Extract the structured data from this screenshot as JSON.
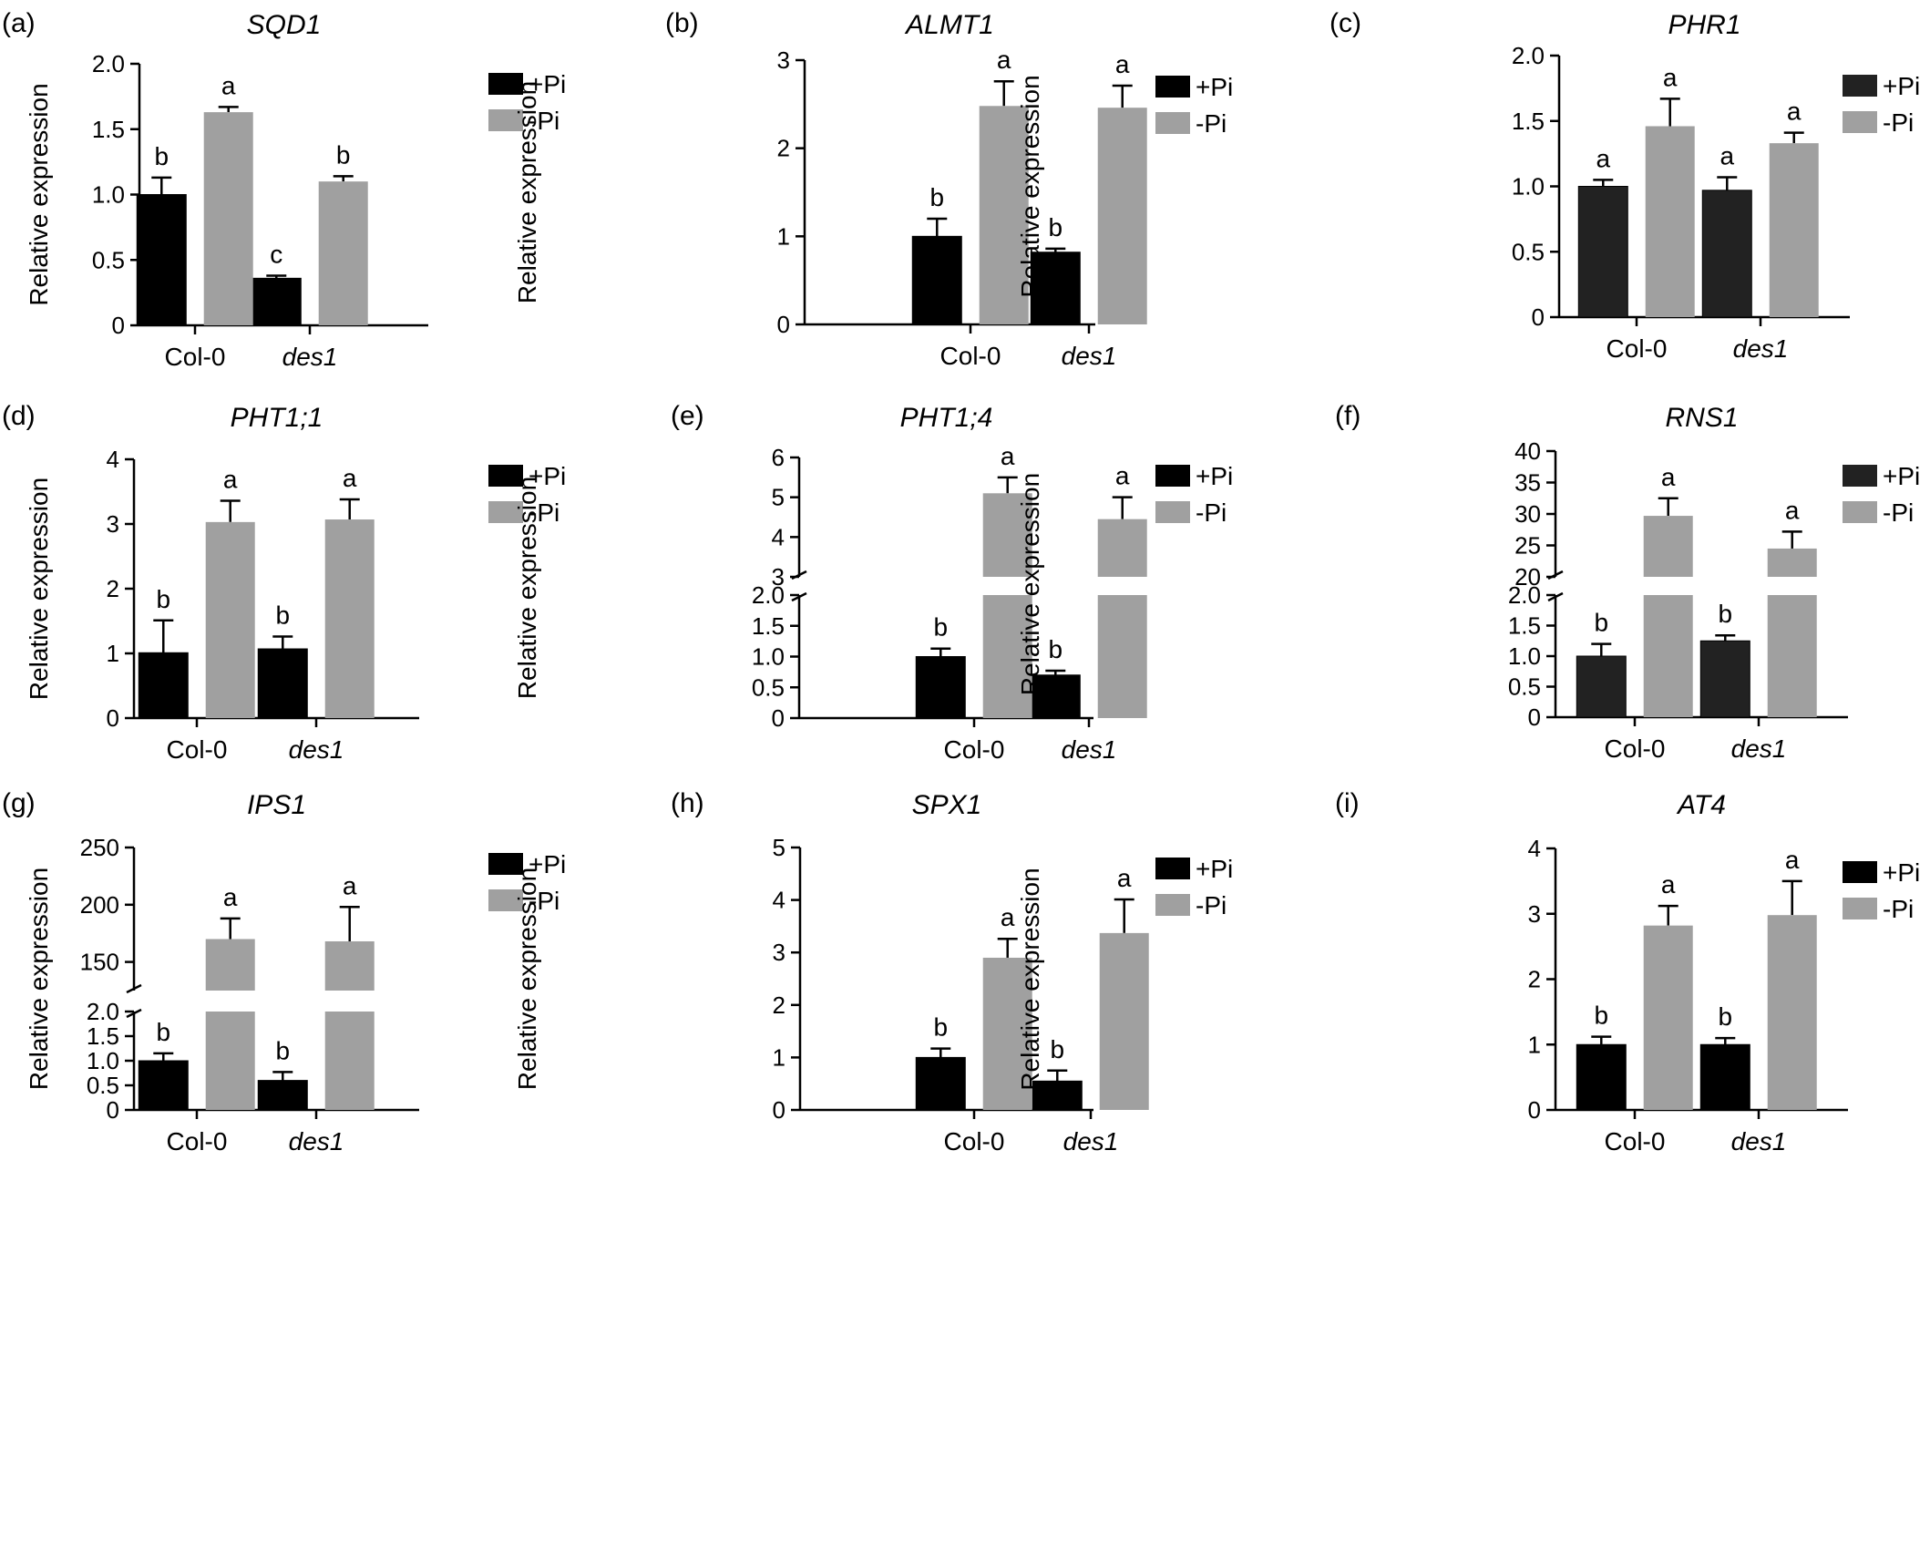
{
  "chart_data": [
    {
      "type": "bar",
      "panel": "(a)",
      "title": "SQD1",
      "ylabel": "Relative expression",
      "categories": [
        "Col-0",
        "des1"
      ],
      "series": [
        {
          "name": "+Pi",
          "values": [
            1.0,
            0.36
          ],
          "errors": [
            0.13,
            0.02
          ],
          "letters": [
            "b",
            "c"
          ]
        },
        {
          "name": "-Pi",
          "values": [
            1.63,
            1.1
          ],
          "errors": [
            0.04,
            0.04
          ],
          "letters": [
            "a",
            "b"
          ]
        }
      ],
      "ylim": [
        0,
        2.0
      ],
      "yticks": [
        "0",
        "0.5",
        "1.0",
        "1.5",
        "2.0"
      ]
    },
    {
      "type": "bar",
      "panel": "(b)",
      "title": "ALMT1",
      "ylabel": "Relative expression",
      "categories": [
        "Col-0",
        "des1"
      ],
      "series": [
        {
          "name": "+Pi",
          "values": [
            1.0,
            0.82
          ],
          "errors": [
            0.2,
            0.04
          ],
          "letters": [
            "b",
            "b"
          ]
        },
        {
          "name": "-Pi",
          "values": [
            2.48,
            2.46
          ],
          "errors": [
            0.28,
            0.25
          ],
          "letters": [
            "a",
            "a"
          ]
        }
      ],
      "ylim": [
        0,
        3
      ],
      "yticks": [
        "0",
        "1",
        "2",
        "3"
      ]
    },
    {
      "type": "bar",
      "panel": "(c)",
      "title": "PHR1",
      "ylabel": "Relative expression",
      "categories": [
        "Col-0",
        "des1"
      ],
      "series": [
        {
          "name": "+Pi",
          "values": [
            1.0,
            0.97
          ],
          "errors": [
            0.05,
            0.1
          ],
          "letters": [
            "a",
            "a"
          ]
        },
        {
          "name": "-Pi",
          "values": [
            1.46,
            1.33
          ],
          "errors": [
            0.21,
            0.08
          ],
          "letters": [
            "a",
            "a"
          ]
        }
      ],
      "ylim": [
        0,
        2.0
      ],
      "yticks": [
        "0",
        "0.5",
        "1.0",
        "1.5",
        "2.0"
      ]
    },
    {
      "type": "bar",
      "panel": "(d)",
      "title": "PHT1;1",
      "ylabel": "Relative expression",
      "categories": [
        "Col-0",
        "des1"
      ],
      "series": [
        {
          "name": "+Pi",
          "values": [
            1.01,
            1.07
          ],
          "errors": [
            0.5,
            0.19
          ],
          "letters": [
            "b",
            "b"
          ]
        },
        {
          "name": "-Pi",
          "values": [
            3.03,
            3.07
          ],
          "errors": [
            0.33,
            0.31
          ],
          "letters": [
            "a",
            "a"
          ]
        }
      ],
      "ylim": [
        0,
        4
      ],
      "yticks": [
        "0",
        "1",
        "2",
        "3",
        "4"
      ]
    },
    {
      "type": "bar",
      "panel": "(e)",
      "title": "PHT1;4",
      "ylabel": "Relative expression",
      "categories": [
        "Col-0",
        "des1"
      ],
      "broken_axis": {
        "lower": [
          0,
          2.0
        ],
        "upper": [
          3,
          6
        ]
      },
      "series": [
        {
          "name": "+Pi",
          "values": [
            1.0,
            0.7
          ],
          "errors": [
            0.13,
            0.07
          ],
          "letters": [
            "b",
            "b"
          ]
        },
        {
          "name": "-Pi",
          "values": [
            5.1,
            4.45
          ],
          "errors": [
            0.4,
            0.55
          ],
          "letters": [
            "a",
            "a"
          ]
        }
      ],
      "yticks_lower": [
        "0",
        "0.5",
        "1.0",
        "1.5",
        "2.0"
      ],
      "yticks_upper": [
        "3",
        "4",
        "5",
        "6"
      ]
    },
    {
      "type": "bar",
      "panel": "(f)",
      "title": "RNS1",
      "ylabel": "Relative expression",
      "categories": [
        "Col-0",
        "des1"
      ],
      "broken_axis": {
        "lower": [
          0,
          2.0
        ],
        "upper": [
          20,
          40
        ]
      },
      "series": [
        {
          "name": "+Pi",
          "values": [
            1.0,
            1.25
          ],
          "errors": [
            0.2,
            0.09
          ],
          "letters": [
            "b",
            "b"
          ]
        },
        {
          "name": "-Pi",
          "values": [
            29.7,
            24.5
          ],
          "errors": [
            2.8,
            2.7
          ],
          "letters": [
            "a",
            "a"
          ]
        }
      ],
      "yticks_lower": [
        "0",
        "0.5",
        "1.0",
        "1.5",
        "2.0"
      ],
      "yticks_upper": [
        "20",
        "25",
        "30",
        "35",
        "40"
      ]
    },
    {
      "type": "bar",
      "panel": "(g)",
      "title": "IPS1",
      "ylabel": "Relative expression",
      "categories": [
        "Col-0",
        "des1"
      ],
      "broken_axis": {
        "lower": [
          0,
          2.0
        ],
        "upper": [
          125,
          250
        ]
      },
      "series": [
        {
          "name": "+Pi",
          "values": [
            1.0,
            0.6
          ],
          "errors": [
            0.15,
            0.17
          ],
          "letters": [
            "b",
            "b"
          ]
        },
        {
          "name": "-Pi",
          "values": [
            170,
            168
          ],
          "errors": [
            18,
            30
          ],
          "letters": [
            "a",
            "a"
          ]
        }
      ],
      "yticks_lower": [
        "0",
        "0.5",
        "1.0",
        "1.5",
        "2.0"
      ],
      "yticks_upper": [
        "150",
        "200",
        "250"
      ]
    },
    {
      "type": "bar",
      "panel": "(h)",
      "title": "SPX1",
      "ylabel": "Relative expression",
      "categories": [
        "Col-0",
        "des1"
      ],
      "series": [
        {
          "name": "+Pi",
          "values": [
            1.0,
            0.55
          ],
          "errors": [
            0.17,
            0.2
          ],
          "letters": [
            "b",
            "b"
          ]
        },
        {
          "name": "-Pi",
          "values": [
            2.9,
            3.37
          ],
          "errors": [
            0.36,
            0.64
          ],
          "letters": [
            "a",
            "a"
          ]
        }
      ],
      "ylim": [
        0,
        5
      ],
      "yticks": [
        "0",
        "1",
        "2",
        "3",
        "4",
        "5"
      ]
    },
    {
      "type": "bar",
      "panel": "(i)",
      "title": "AT4",
      "ylabel": "Relative expression",
      "categories": [
        "Col-0",
        "des1"
      ],
      "series": [
        {
          "name": "+Pi",
          "values": [
            1.0,
            1.0
          ],
          "errors": [
            0.12,
            0.1
          ],
          "letters": [
            "b",
            "b"
          ]
        },
        {
          "name": "-Pi",
          "values": [
            2.82,
            2.98
          ],
          "errors": [
            0.3,
            0.52
          ],
          "letters": [
            "a",
            "a"
          ]
        }
      ],
      "ylim": [
        0,
        4
      ],
      "yticks": [
        "0",
        "1",
        "2",
        "3",
        "4"
      ]
    }
  ],
  "colors": {
    "plus_pi": "#000000",
    "minus_pi": "#a0a0a0",
    "plus_pi_alt": "#222222"
  },
  "legend_placement": "top-right"
}
